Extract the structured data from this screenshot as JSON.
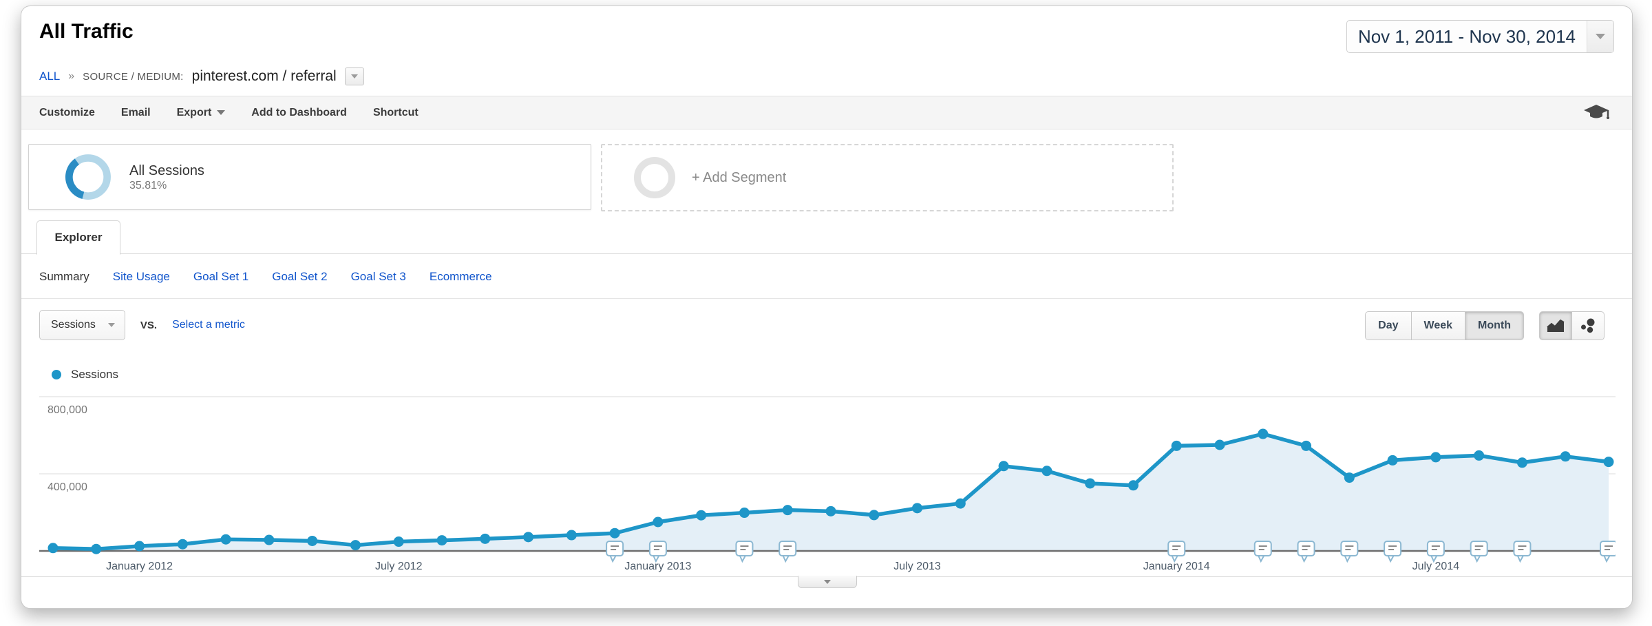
{
  "header": {
    "title": "All Traffic",
    "date_range": "Nov 1, 2011 - Nov 30, 2014"
  },
  "breadcrumb": {
    "root": "ALL",
    "separator": "»",
    "dimension_label": "SOURCE / MEDIUM:",
    "dimension_value": "pinterest.com / referral"
  },
  "toolbar": {
    "customize": "Customize",
    "email": "Email",
    "export": "Export",
    "add_to_dashboard": "Add to Dashboard",
    "shortcut": "Shortcut"
  },
  "segments": {
    "all_sessions": {
      "label": "All Sessions",
      "percent": "35.81%"
    },
    "add_segment": {
      "label": "+ Add Segment"
    }
  },
  "explorer": {
    "tab_label": "Explorer",
    "subnav": [
      "Summary",
      "Site Usage",
      "Goal Set 1",
      "Goal Set 2",
      "Goal Set 3",
      "Ecommerce"
    ]
  },
  "controls": {
    "metric_select_value": "Sessions",
    "vs_label": "vs.",
    "select_metric_label": "Select a metric",
    "granularity": [
      "Day",
      "Week",
      "Month"
    ],
    "active_granularity": "Month"
  },
  "legend": {
    "label": "Sessions"
  },
  "chart_data": {
    "type": "line",
    "title": "Sessions by month (pinterest.com / referral)",
    "series_name": "Sessions",
    "granularity": "Month",
    "x": [
      "Nov 2011",
      "Dec 2011",
      "Jan 2012",
      "Feb 2012",
      "Mar 2012",
      "Apr 2012",
      "May 2012",
      "Jun 2012",
      "Jul 2012",
      "Aug 2012",
      "Sep 2012",
      "Oct 2012",
      "Nov 2012",
      "Dec 2012",
      "Jan 2013",
      "Feb 2013",
      "Mar 2013",
      "Apr 2013",
      "May 2013",
      "Jun 2013",
      "Jul 2013",
      "Aug 2013",
      "Sep 2013",
      "Oct 2013",
      "Nov 2013",
      "Dec 2013",
      "Jan 2014",
      "Feb 2014",
      "Mar 2014",
      "Apr 2014",
      "May 2014",
      "Jun 2014",
      "Jul 2014",
      "Aug 2014",
      "Sep 2014",
      "Oct 2014",
      "Nov 2014"
    ],
    "values": [
      15000,
      10000,
      25000,
      35000,
      60000,
      57000,
      52000,
      30000,
      48000,
      55000,
      63000,
      72000,
      82000,
      92000,
      150000,
      185000,
      198000,
      212000,
      206000,
      186000,
      222000,
      246000,
      440000,
      415000,
      350000,
      340000,
      545000,
      550000,
      607000,
      545000,
      380000,
      470000,
      486000,
      495000,
      458000,
      490000,
      462000
    ],
    "ylim": [
      0,
      960000
    ],
    "yticks": [
      {
        "value": 400000,
        "label": "400,000"
      },
      {
        "value": 800000,
        "label": "800,000"
      }
    ],
    "x_axis_labels": [
      {
        "index": 2,
        "label": "January 2012"
      },
      {
        "index": 8,
        "label": "July 2012"
      },
      {
        "index": 14,
        "label": "January 2013"
      },
      {
        "index": 20,
        "label": "July 2013"
      },
      {
        "index": 26,
        "label": "January 2014"
      },
      {
        "index": 32,
        "label": "July 2014"
      }
    ],
    "annotation_marker_indices": [
      13,
      14,
      16,
      17,
      26,
      28,
      29,
      30,
      31,
      32,
      33,
      34,
      36
    ],
    "grid": true,
    "legend_position": "top-left",
    "colors": {
      "line": "#1e96c8",
      "fill": "#e4eff7",
      "grid": "#e7e7e7",
      "axis": "#6e6e6e"
    }
  }
}
